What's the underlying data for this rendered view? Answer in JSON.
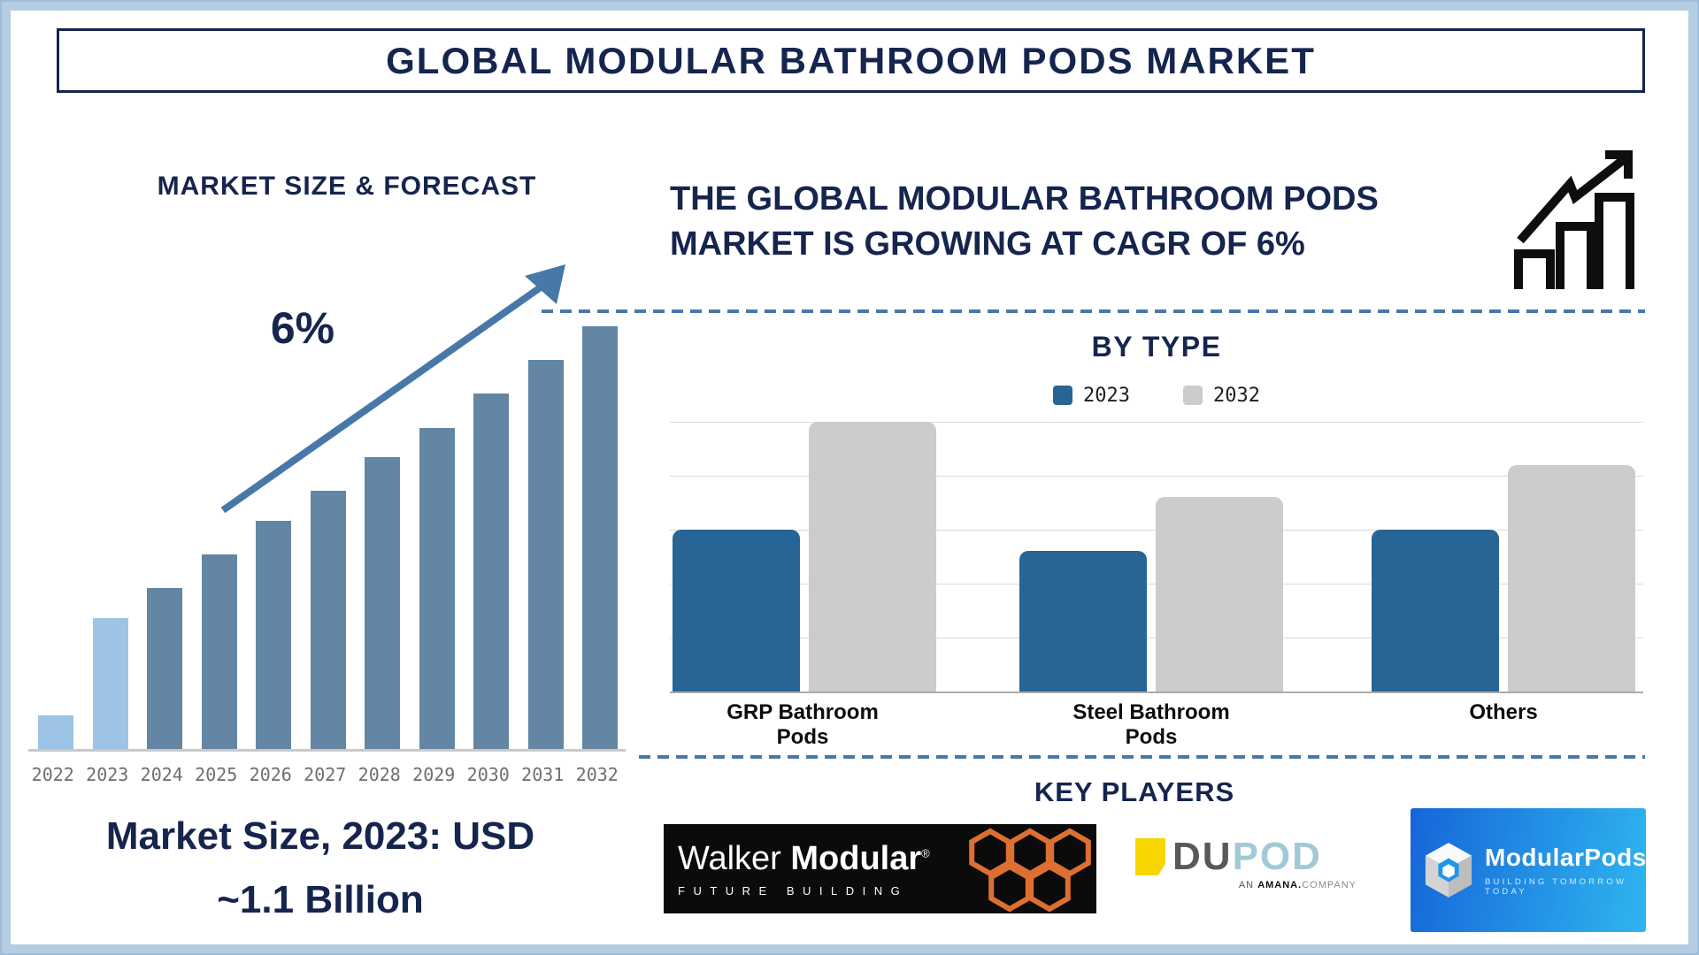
{
  "page": {
    "title": "GLOBAL MODULAR BATHROOM PODS MARKET"
  },
  "theme": {
    "navy": "#16254e",
    "steel": "#4878a8",
    "frame_blue": "#b5cde3",
    "frame_edge": "#9fbcd8",
    "label_gray": "#6e6e6e",
    "grid_gray": "#dadada",
    "axis_gray": "#ababab",
    "dupod_yellow": "#f6d500",
    "mpods_blue1": "#1566d8",
    "mpods_blue2": "#2fb5f0",
    "walker_orange": "#dd7031"
  },
  "left_panel": {
    "section_title": "MARKET SIZE & FORECAST",
    "note": "Market Size, 2023: USD\n~1.1 Billion"
  },
  "right_panel": {
    "headline": "THE GLOBAL MODULAR BATHROOM PODS\nMARKET IS GROWING AT CAGR OF 6%",
    "by_type_title": "BY TYPE",
    "key_players_title": "KEY PLAYERS"
  },
  "chart_data": [
    {
      "id": "market-size-forecast",
      "type": "bar",
      "title": "MARKET SIZE & FORECAST",
      "categories": [
        "2022",
        "2023",
        "2024",
        "2025",
        "2026",
        "2027",
        "2028",
        "2029",
        "2030",
        "2031",
        "2032"
      ],
      "values": [
        8,
        31,
        38,
        46,
        54,
        61,
        69,
        76,
        84,
        92,
        100
      ],
      "values_unit": "relative height index (2032 = 100), y-axis unlabeled",
      "annotation": "6%",
      "annotation_meaning": "CAGR shown beside upward trend arrow",
      "market_size_2023": "USD ~1.1 Billion",
      "highlight_years": [
        "2022",
        "2023"
      ],
      "bar_color_highlight": "#9dc3e6",
      "bar_color_default": "#6286a4",
      "grid": false,
      "legend_position": "none"
    },
    {
      "id": "by-type",
      "type": "bar",
      "title": "BY TYPE",
      "categories": [
        "GRP Bathroom\nPods",
        "Steel Bathroom\nPods",
        "Others"
      ],
      "series": [
        {
          "name": "2023",
          "color": "#266596",
          "values": [
            3.0,
            2.6,
            3.0
          ]
        },
        {
          "name": "2032",
          "color": "#cccccc",
          "values": [
            5.0,
            3.6,
            4.2
          ]
        }
      ],
      "values_unit": "relative units (gridline spacing = 1), y-axis unlabeled",
      "ylim": [
        0,
        5
      ],
      "grid": true,
      "legend_position": "top"
    }
  ],
  "key_players": {
    "walker": {
      "name_regular": "Walker",
      "name_bold": "Modular",
      "reg_mark": "®",
      "tagline": "FUTURE BUILDING"
    },
    "dupod": {
      "du": "DU",
      "pod": "POD",
      "sub_an": "AN ",
      "sub_bold": "AMANA.",
      "sub_rest": "COMPANY"
    },
    "modularpods": {
      "name": "ModularPods",
      "tagline": "BUILDING TOMORROW TODAY"
    }
  }
}
